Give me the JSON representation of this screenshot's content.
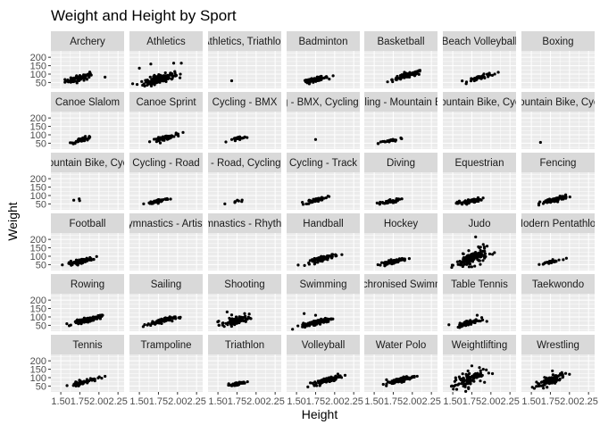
{
  "chart_data": {
    "type": "scatter",
    "title": "Weight and Height by Sport",
    "xlabel": "Height",
    "ylabel": "Weight",
    "xlim": [
      1.37,
      2.33
    ],
    "ylim": [
      15,
      238
    ],
    "x_ticks": [
      1.5,
      1.75,
      2.0,
      2.25
    ],
    "x_tick_labels": [
      "1.50",
      "1.75",
      "2.00",
      "2.25"
    ],
    "y_ticks": [
      50,
      100,
      150,
      200
    ],
    "y_tick_labels": [
      "50",
      "100",
      "150",
      "200"
    ],
    "grid": true,
    "facet_layout": {
      "columns": 7,
      "rows": 6
    },
    "facets": [
      {
        "label": "Archery",
        "n": 70,
        "cx": 1.74,
        "cy": 75,
        "sx": 0.09,
        "sy": 13,
        "corr": 0.7,
        "outliers": [
          [
            1.88,
            112
          ],
          [
            2.08,
            82
          ]
        ]
      },
      {
        "label": "Athletics",
        "n": 190,
        "cx": 1.76,
        "cy": 70,
        "sx": 0.1,
        "sy": 17,
        "corr": 0.7,
        "outliers": [
          [
            1.5,
            135
          ],
          [
            1.65,
            160
          ],
          [
            1.95,
            165
          ],
          [
            2.05,
            165
          ]
        ]
      },
      {
        "label": "Athletics, Triathlon",
        "n": 1,
        "cx": 1.68,
        "cy": 60,
        "sx": 0,
        "sy": 0,
        "corr": 0,
        "outliers": []
      },
      {
        "label": "Badminton",
        "n": 60,
        "cx": 1.75,
        "cy": 68,
        "sx": 0.08,
        "sy": 9,
        "corr": 0.8,
        "outliers": [
          [
            1.98,
            90
          ]
        ]
      },
      {
        "label": "Basketball",
        "n": 110,
        "cx": 1.94,
        "cy": 92,
        "sx": 0.1,
        "sy": 14,
        "corr": 0.85,
        "outliers": []
      },
      {
        "label": "Beach Volleyball",
        "n": 45,
        "cx": 1.88,
        "cy": 82,
        "sx": 0.09,
        "sy": 12,
        "corr": 0.85,
        "outliers": [
          [
            2.05,
            100
          ]
        ]
      },
      {
        "label": "Boxing",
        "n": 0,
        "cx": 0,
        "cy": 0,
        "sx": 0,
        "sy": 0,
        "corr": 0,
        "outliers": []
      },
      {
        "label": "Canoe Slalom",
        "n": 40,
        "cx": 1.78,
        "cy": 72,
        "sx": 0.07,
        "sy": 10,
        "corr": 0.8,
        "outliers": []
      },
      {
        "label": "Canoe Sprint",
        "n": 60,
        "cx": 1.82,
        "cy": 80,
        "sx": 0.08,
        "sy": 11,
        "corr": 0.85,
        "outliers": [
          [
            1.98,
            102
          ]
        ]
      },
      {
        "label": "Cycling - BMX",
        "n": 22,
        "cx": 1.75,
        "cy": 74,
        "sx": 0.07,
        "sy": 10,
        "corr": 0.8,
        "outliers": []
      },
      {
        "label": "Cycling - BMX, Cycling - Road",
        "n": 1,
        "cx": 1.75,
        "cy": 72,
        "sx": 0,
        "sy": 0,
        "corr": 0,
        "outliers": []
      },
      {
        "label": "Cycling - Mountain Bike",
        "n": 30,
        "cx": 1.72,
        "cy": 65,
        "sx": 0.08,
        "sy": 9,
        "corr": 0.85,
        "outliers": [
          [
            1.55,
            48
          ]
        ]
      },
      {
        "label": "Cycling - Mountain Bike, Cycling - Road",
        "n": 0,
        "cx": 0,
        "cy": 0,
        "sx": 0,
        "sy": 0,
        "corr": 0,
        "outliers": []
      },
      {
        "label": "Cycling - Mountain Bike, Cycling - Road",
        "n": 1,
        "cx": 1.62,
        "cy": 55,
        "sx": 0,
        "sy": 0,
        "corr": 0,
        "outliers": []
      },
      {
        "label": "Cycling - Mountain Bike, Cycling - Track",
        "n": 3,
        "cx": 1.72,
        "cy": 72,
        "sx": 0.05,
        "sy": 6,
        "corr": 0.5,
        "outliers": []
      },
      {
        "label": "Cycling - Road",
        "n": 55,
        "cx": 1.76,
        "cy": 68,
        "sx": 0.07,
        "sy": 8,
        "corr": 0.8,
        "outliers": []
      },
      {
        "label": "Cycling - Road, Cycling - Track",
        "n": 8,
        "cx": 1.72,
        "cy": 62,
        "sx": 0.06,
        "sy": 6,
        "corr": 0.7,
        "outliers": []
      },
      {
        "label": "Cycling - Track",
        "n": 55,
        "cx": 1.76,
        "cy": 74,
        "sx": 0.07,
        "sy": 10,
        "corr": 0.8,
        "outliers": []
      },
      {
        "label": "Diving",
        "n": 40,
        "cx": 1.65,
        "cy": 58,
        "sx": 0.09,
        "sy": 10,
        "corr": 0.85,
        "outliers": []
      },
      {
        "label": "Equestrian",
        "n": 60,
        "cx": 1.72,
        "cy": 65,
        "sx": 0.08,
        "sy": 9,
        "corr": 0.7,
        "outliers": []
      },
      {
        "label": "Fencing",
        "n": 80,
        "cx": 1.8,
        "cy": 74,
        "sx": 0.09,
        "sy": 12,
        "corr": 0.85,
        "outliers": []
      },
      {
        "label": "Football",
        "n": 100,
        "cx": 1.76,
        "cy": 70,
        "sx": 0.08,
        "sy": 10,
        "corr": 0.8,
        "outliers": []
      },
      {
        "label": "Gymnastics - Artistic",
        "n": 0,
        "cx": 0,
        "cy": 0,
        "sx": 0,
        "sy": 0,
        "corr": 0,
        "outliers": []
      },
      {
        "label": "Gymnastics - Rhythmic",
        "n": 0,
        "cx": 0,
        "cy": 0,
        "sx": 0,
        "sy": 0,
        "corr": 0,
        "outliers": []
      },
      {
        "label": "Handball",
        "n": 80,
        "cx": 1.86,
        "cy": 88,
        "sx": 0.09,
        "sy": 13,
        "corr": 0.85,
        "outliers": []
      },
      {
        "label": "Hockey",
        "n": 80,
        "cx": 1.74,
        "cy": 68,
        "sx": 0.08,
        "sy": 9,
        "corr": 0.8,
        "outliers": []
      },
      {
        "label": "Judo",
        "n": 140,
        "cx": 1.75,
        "cy": 85,
        "sx": 0.1,
        "sy": 25,
        "corr": 0.6,
        "outliers": [
          [
            1.8,
            215
          ],
          [
            1.9,
            170
          ],
          [
            1.95,
            160
          ],
          [
            1.85,
            150
          ]
        ]
      },
      {
        "label": "Modern Pentathlon",
        "n": 30,
        "cx": 1.76,
        "cy": 66,
        "sx": 0.07,
        "sy": 8,
        "corr": 0.8,
        "outliers": [
          [
            1.96,
            88
          ]
        ]
      },
      {
        "label": "Rowing",
        "n": 110,
        "cx": 1.85,
        "cy": 82,
        "sx": 0.09,
        "sy": 12,
        "corr": 0.85,
        "outliers": []
      },
      {
        "label": "Sailing",
        "n": 80,
        "cx": 1.78,
        "cy": 75,
        "sx": 0.09,
        "sy": 11,
        "corr": 0.8,
        "outliers": []
      },
      {
        "label": "Shooting",
        "n": 80,
        "cx": 1.73,
        "cy": 75,
        "sx": 0.09,
        "sy": 15,
        "corr": 0.6,
        "outliers": [
          [
            1.62,
            130
          ],
          [
            1.85,
            120
          ],
          [
            1.68,
            112
          ]
        ]
      },
      {
        "label": "Swimming",
        "n": 140,
        "cx": 1.78,
        "cy": 70,
        "sx": 0.1,
        "sy": 12,
        "corr": 0.85,
        "outliers": [
          [
            1.6,
            120
          ],
          [
            1.75,
            110
          ]
        ]
      },
      {
        "label": "Synchronised Swimming",
        "n": 0,
        "cx": 0,
        "cy": 0,
        "sx": 0,
        "sy": 0,
        "corr": 0,
        "outliers": []
      },
      {
        "label": "Table Tennis",
        "n": 70,
        "cx": 1.72,
        "cy": 66,
        "sx": 0.08,
        "sy": 11,
        "corr": 0.75,
        "outliers": [
          [
            1.88,
            96
          ],
          [
            1.82,
            110
          ]
        ]
      },
      {
        "label": "Taekwondo",
        "n": 0,
        "cx": 0,
        "cy": 0,
        "sx": 0,
        "sy": 0,
        "corr": 0,
        "outliers": []
      },
      {
        "label": "Tennis",
        "n": 60,
        "cx": 1.79,
        "cy": 74,
        "sx": 0.09,
        "sy": 12,
        "corr": 0.85,
        "outliers": [
          [
            2.08,
            108
          ]
        ]
      },
      {
        "label": "Trampoline",
        "n": 0,
        "cx": 0,
        "cy": 0,
        "sx": 0,
        "sy": 0,
        "corr": 0,
        "outliers": []
      },
      {
        "label": "Triathlon",
        "n": 45,
        "cx": 1.74,
        "cy": 62,
        "sx": 0.07,
        "sy": 8,
        "corr": 0.8,
        "outliers": []
      },
      {
        "label": "Volleyball",
        "n": 90,
        "cx": 1.9,
        "cy": 85,
        "sx": 0.09,
        "sy": 13,
        "corr": 0.85,
        "outliers": []
      },
      {
        "label": "Water Polo",
        "n": 80,
        "cx": 1.84,
        "cy": 85,
        "sx": 0.09,
        "sy": 13,
        "corr": 0.85,
        "outliers": []
      },
      {
        "label": "Weightlifting",
        "n": 90,
        "cx": 1.69,
        "cy": 85,
        "sx": 0.1,
        "sy": 28,
        "corr": 0.65,
        "outliers": [
          [
            1.75,
            170
          ],
          [
            1.85,
            160
          ],
          [
            1.9,
            150
          ],
          [
            1.7,
            140
          ]
        ]
      },
      {
        "label": "Wrestling",
        "n": 90,
        "cx": 1.74,
        "cy": 82,
        "sx": 0.1,
        "sy": 22,
        "corr": 0.75,
        "outliers": [
          [
            1.95,
            125
          ],
          [
            2.0,
            120
          ],
          [
            1.9,
            130
          ]
        ]
      }
    ],
    "point_color": "#000000",
    "panel_background": "#ebebeb",
    "strip_background": "#d9d9d9",
    "grid_color": "#ffffff"
  }
}
